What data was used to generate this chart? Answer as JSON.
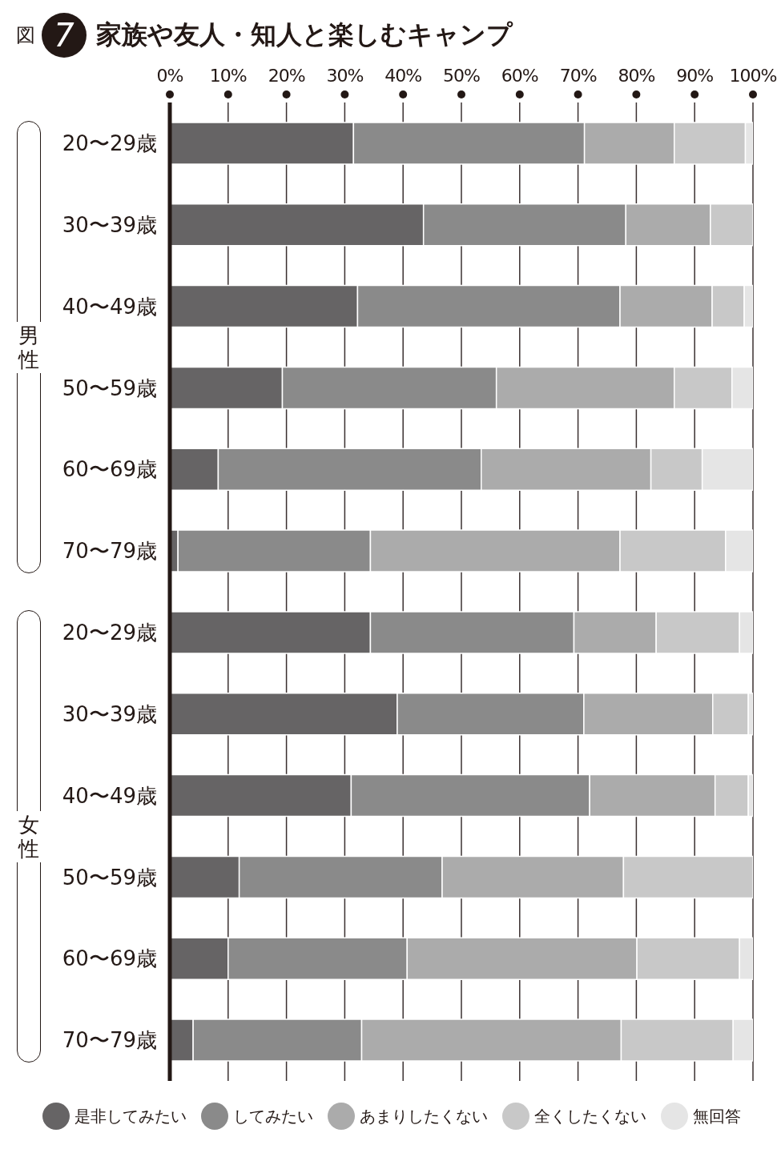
{
  "chart_data": {
    "type": "bar",
    "orientation": "horizontal",
    "stacked": true,
    "title": "家族や友人・知人と楽しむキャンプ",
    "annotations": [
      "図",
      "7",
      "男性",
      "女性"
    ],
    "categories": [
      "20〜29歳",
      "30〜39歳",
      "40〜49歳",
      "50〜59歳",
      "60〜69歳",
      "70〜79歳",
      "20〜29歳",
      "30〜39歳",
      "40〜49歳",
      "50〜59歳",
      "60〜69歳",
      "70〜79歳"
    ],
    "series": [
      {
        "name": "是非してみたい",
        "color": "#666465",
        "values": [
          31.5,
          43.5,
          32.2,
          19.3,
          8.3,
          1.4,
          34.4,
          39.0,
          31.1,
          11.9,
          10.0,
          4.0
        ]
      },
      {
        "name": "してみたい",
        "color": "#8a8a8a",
        "values": [
          39.6,
          34.7,
          45.0,
          36.7,
          45.1,
          33.0,
          34.9,
          32.0,
          40.9,
          34.8,
          30.7,
          28.9
        ]
      },
      {
        "name": "あまりしたくない",
        "color": "#ababab",
        "values": [
          15.4,
          14.5,
          15.8,
          30.5,
          29.1,
          42.8,
          14.1,
          22.1,
          21.5,
          31.1,
          39.4,
          44.5
        ]
      },
      {
        "name": "全くしたくない",
        "color": "#c8c8c8",
        "values": [
          12.2,
          7.3,
          5.5,
          9.9,
          8.8,
          18.1,
          14.3,
          6.1,
          5.7,
          22.2,
          17.6,
          19.2
        ]
      },
      {
        "name": "無回答",
        "color": "#e5e5e5",
        "values": [
          1.3,
          0,
          1.5,
          3.6,
          8.7,
          4.7,
          2.3,
          0.8,
          0.8,
          0,
          2.3,
          3.4
        ]
      }
    ],
    "xlim": [
      0,
      100
    ],
    "xticks": [
      {
        "value": 0,
        "label": "0%"
      },
      {
        "value": 10,
        "label": "10%"
      },
      {
        "value": 20,
        "label": "20%"
      },
      {
        "value": 30,
        "label": "30%"
      },
      {
        "value": 40,
        "label": "40%"
      },
      {
        "value": 50,
        "label": "50%"
      },
      {
        "value": 60,
        "label": "60%"
      },
      {
        "value": 70,
        "label": "70%"
      },
      {
        "value": 80,
        "label": "80%"
      },
      {
        "value": 90,
        "label": "90%"
      },
      {
        "value": 100,
        "label": "100%"
      }
    ],
    "grid": "x",
    "legend": "bottom"
  }
}
